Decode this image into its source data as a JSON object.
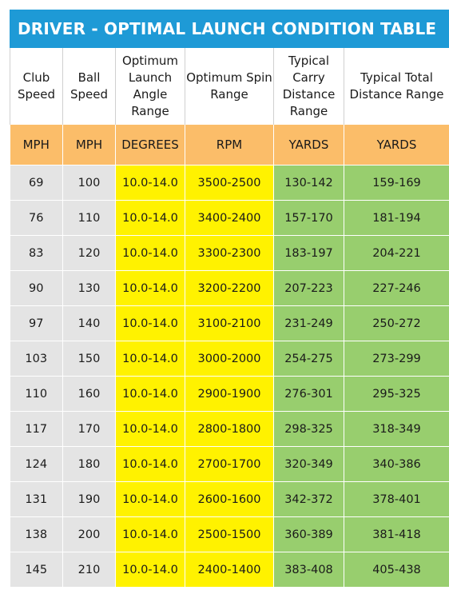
{
  "title": "DRIVER - OPTIMAL LAUNCH CONDITION TABLE",
  "headers": [
    "Club Speed",
    "Ball Speed",
    "Optimum Launch Angle Range",
    "Optimum Spin Range",
    "Typical Carry Distance Range",
    "Typical Total Distance Range"
  ],
  "units": [
    "MPH",
    "MPH",
    "DEGREES",
    "RPM",
    "YARDS",
    "YARDS"
  ],
  "rows": [
    [
      "69",
      "100",
      "10.0-14.0",
      "3500-2500",
      "130-142",
      "159-169"
    ],
    [
      "76",
      "110",
      "10.0-14.0",
      "3400-2400",
      "157-170",
      "181-194"
    ],
    [
      "83",
      "120",
      "10.0-14.0",
      "3300-2300",
      "183-197",
      "204-221"
    ],
    [
      "90",
      "130",
      "10.0-14.0",
      "3200-2200",
      "207-223",
      "227-246"
    ],
    [
      "97",
      "140",
      "10.0-14.0",
      "3100-2100",
      "231-249",
      "250-272"
    ],
    [
      "103",
      "150",
      "10.0-14.0",
      "3000-2000",
      "254-275",
      "273-299"
    ],
    [
      "110",
      "160",
      "10.0-14.0",
      "2900-1900",
      "276-301",
      "295-325"
    ],
    [
      "117",
      "170",
      "10.0-14.0",
      "2800-1800",
      "298-325",
      "318-349"
    ],
    [
      "124",
      "180",
      "10.0-14.0",
      "2700-1700",
      "320-349",
      "340-386"
    ],
    [
      "131",
      "190",
      "10.0-14.0",
      "2600-1600",
      "342-372",
      "378-401"
    ],
    [
      "138",
      "200",
      "10.0-14.0",
      "2500-1500",
      "360-389",
      "381-418"
    ],
    [
      "145",
      "210",
      "10.0-14.0",
      "2400-1400",
      "383-408",
      "405-438"
    ]
  ],
  "colors": {
    "title_bg": "#1e9ad6",
    "units_bg": "#fbbd69",
    "speed_bg": "#e4e4e4",
    "launch_spin_bg": "#fff200",
    "distance_bg": "#98ce6e"
  }
}
